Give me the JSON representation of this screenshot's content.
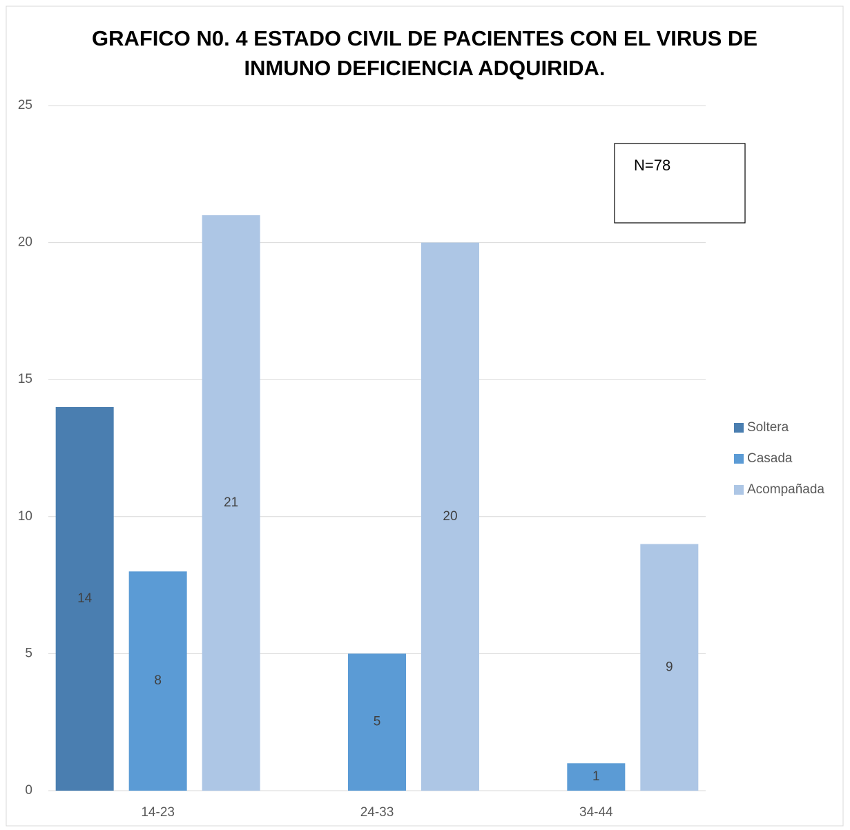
{
  "chart_data": {
    "type": "bar",
    "title": "GRAFICO N0. 4 ESTADO CIVIL DE PACIENTES CON EL VIRUS DE INMUNO DEFICIENCIA ADQUIRIDA.",
    "categories": [
      "14-23",
      "24-33",
      "34-44"
    ],
    "series": [
      {
        "name": "Soltera",
        "color": "#4a7eb0",
        "values": [
          14,
          null,
          null
        ]
      },
      {
        "name": "Casada",
        "color": "#5b9bd5",
        "values": [
          8,
          5,
          1
        ]
      },
      {
        "name": "Acompañada",
        "color": "#adc6e5",
        "values": [
          21,
          20,
          9
        ]
      }
    ],
    "ylim": [
      0,
      25
    ],
    "yticks": [
      0,
      5,
      10,
      15,
      20,
      25
    ],
    "grid": true,
    "legend": "right",
    "annotation": "N=78"
  }
}
